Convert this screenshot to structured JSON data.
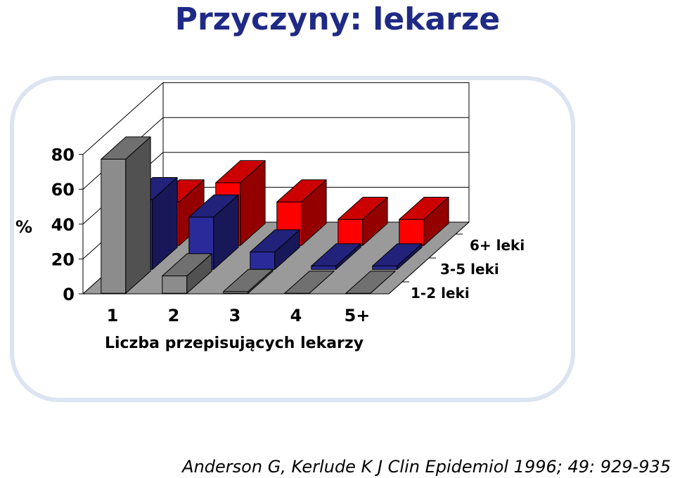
{
  "title": "Przyczyny: lekarze",
  "citation": "Anderson G, Kerlude K J Clin Epidemiol 1996; 49: 929-935",
  "chart_data": {
    "type": "bar",
    "subtype": "3d-clustered-depth",
    "categories": [
      "1",
      "2",
      "3",
      "4",
      "5+"
    ],
    "series": [
      {
        "name": "1-2 leki",
        "values": [
          77,
          10,
          1,
          0,
          0
        ],
        "color": "#8c8c8c"
      },
      {
        "name": "3-5 leki",
        "values": [
          40,
          30,
          10,
          2,
          2
        ],
        "color": "#2a2a9a"
      },
      {
        "name": "6+ leki",
        "values": [
          25,
          36,
          25,
          15,
          15
        ],
        "color": "#ff0000"
      }
    ],
    "xlabel": "Liczba przepisujących lekarzy",
    "ylabel": "%",
    "yticks": [
      "0",
      "20",
      "40",
      "60",
      "80"
    ],
    "ylim": [
      0,
      80
    ],
    "grid": true,
    "legend": "depth-axis"
  }
}
